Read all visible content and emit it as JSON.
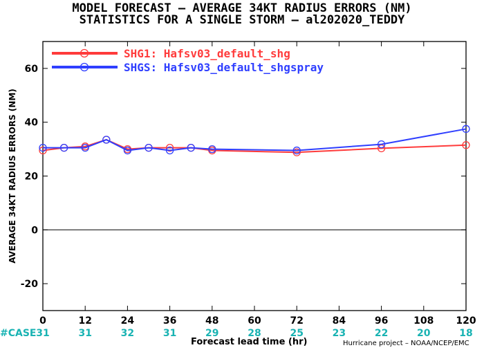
{
  "chart_data": {
    "type": "line",
    "title": "MODEL FORECAST – AVERAGE 34KT RADIUS ERRORS (NM)",
    "subtitle": "STATISTICS FOR A SINGLE STORM – al202020_TEDDY",
    "xlabel": "Forecast lead time (hr)",
    "ylabel": "AVERAGE 34KT RADIUS ERRORS (NM)",
    "xlim": [
      0,
      120
    ],
    "ylim": [
      -30,
      70
    ],
    "xticks": [
      0,
      12,
      24,
      36,
      48,
      60,
      72,
      84,
      96,
      108,
      120
    ],
    "yticks": [
      -20,
      0,
      20,
      40,
      60
    ],
    "grid": false,
    "legend_position": "top-left",
    "zero_line": true,
    "series": [
      {
        "name": "SHG1: Hafsv03_default_shg",
        "color": "#ff3b3b",
        "x": [
          0,
          6,
          12,
          18,
          24,
          30,
          36,
          42,
          48,
          72,
          96,
          120
        ],
        "y": [
          29.5,
          30.5,
          31.0,
          33.5,
          30.0,
          30.5,
          30.5,
          30.5,
          29.5,
          28.8,
          30.3,
          31.5
        ]
      },
      {
        "name": "SHGS: Hafsv03_default_shgspray",
        "color": "#2f3fff",
        "x": [
          0,
          6,
          12,
          18,
          24,
          30,
          36,
          42,
          48,
          72,
          96,
          120
        ],
        "y": [
          30.5,
          30.5,
          30.5,
          33.5,
          29.5,
          30.5,
          29.5,
          30.5,
          30.0,
          29.5,
          31.8,
          37.5
        ]
      }
    ],
    "case_label": "#CASE",
    "case_counts": [
      {
        "x": 0,
        "n": "31"
      },
      {
        "x": 12,
        "n": "31"
      },
      {
        "x": 24,
        "n": "32"
      },
      {
        "x": 36,
        "n": "31"
      },
      {
        "x": 48,
        "n": "29"
      },
      {
        "x": 60,
        "n": "28"
      },
      {
        "x": 72,
        "n": "25"
      },
      {
        "x": 84,
        "n": "23"
      },
      {
        "x": 96,
        "n": "22"
      },
      {
        "x": 108,
        "n": "20"
      },
      {
        "x": 120,
        "n": "18"
      }
    ],
    "case_color": "#19b3b3"
  },
  "credit": "Hurricane project – NOAA/NCEP/EMC"
}
